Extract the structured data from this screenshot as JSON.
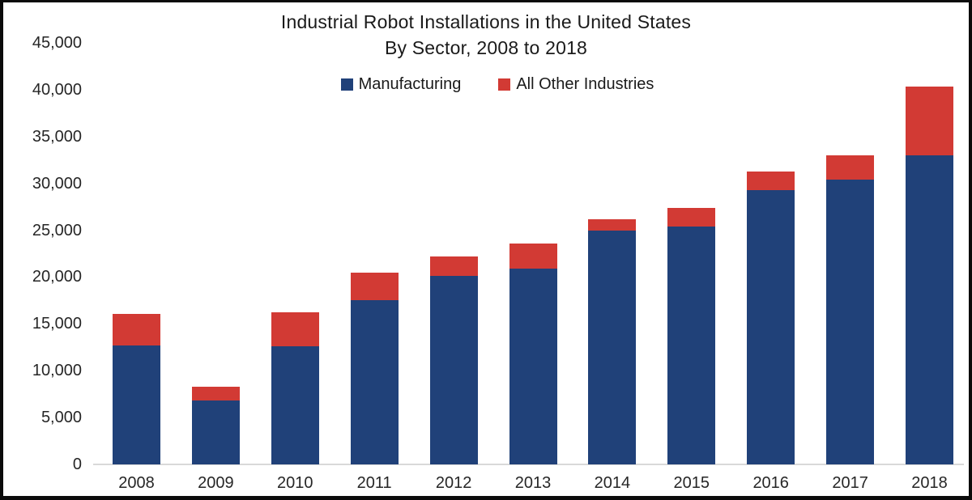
{
  "chart": {
    "title_line1": "Industrial Robot Installations in the United States",
    "title_line2": "By Sector, 2008 to 2018",
    "legend": [
      {
        "label": "Manufacturing",
        "color": "#204179"
      },
      {
        "label": "All Other Industries",
        "color": "#d23a34"
      }
    ]
  },
  "chart_data": {
    "type": "bar",
    "stacked": true,
    "title": "Industrial Robot Installations in the United States By Sector, 2008 to 2018",
    "categories": [
      "2008",
      "2009",
      "2010",
      "2011",
      "2012",
      "2013",
      "2014",
      "2015",
      "2016",
      "2017",
      "2018"
    ],
    "series": [
      {
        "name": "Manufacturing",
        "color": "#204179",
        "values": [
          12700,
          6800,
          12600,
          17500,
          20100,
          20900,
          25000,
          25400,
          29300,
          30400,
          33000
        ]
      },
      {
        "name": "All Other Industries",
        "color": "#d23a34",
        "values": [
          3400,
          1500,
          3600,
          2900,
          2100,
          2700,
          1200,
          2000,
          2000,
          2600,
          7300
        ]
      }
    ],
    "xlabel": "",
    "ylabel": "",
    "ylim": [
      0,
      45000
    ],
    "y_ticks": [
      0,
      5000,
      10000,
      15000,
      20000,
      25000,
      30000,
      35000,
      40000,
      45000
    ],
    "y_tick_labels": [
      "0",
      "5,000",
      "10,000",
      "15,000",
      "20,000",
      "25,000",
      "30,000",
      "35,000",
      "40,000",
      "45,000"
    ],
    "grid": false,
    "legend_position": "top-center"
  }
}
